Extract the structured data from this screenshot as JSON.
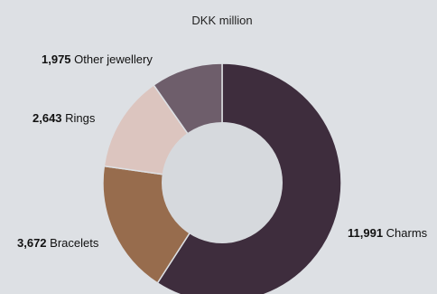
{
  "chart_data": {
    "type": "pie",
    "subtitle": "DKK million",
    "donut": true,
    "slices": [
      {
        "label": "Charms",
        "value": 11991,
        "value_text": "11,991",
        "color": "#3e2d3d"
      },
      {
        "label": "Bracelets",
        "value": 3672,
        "value_text": "3,672",
        "color": "#976c4d"
      },
      {
        "label": "Rings",
        "value": 2643,
        "value_text": "2,643",
        "color": "#dcc5bf"
      },
      {
        "label": "Other jewellery",
        "value": 1975,
        "value_text": "1,975",
        "color": "#6e5e6b"
      }
    ],
    "hole_color": "#d6d9dd",
    "background": "#dde0e4"
  }
}
